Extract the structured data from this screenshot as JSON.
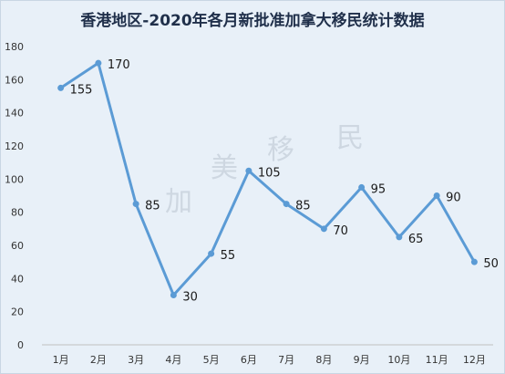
{
  "chart_data": {
    "type": "line",
    "title": "香港地区-2020年各月新批准加拿大移民统计数据",
    "categories": [
      "1月",
      "2月",
      "3月",
      "4月",
      "5月",
      "6月",
      "7月",
      "8月",
      "9月",
      "10月",
      "11月",
      "12月"
    ],
    "series": [
      {
        "values": [
          155,
          170,
          85,
          30,
          55,
          105,
          85,
          70,
          95,
          65,
          90,
          50
        ]
      }
    ],
    "ylim": [
      0,
      180
    ],
    "yticks": [
      0,
      20,
      40,
      60,
      80,
      100,
      120,
      140,
      160,
      180
    ],
    "grid": false,
    "legend": "none",
    "xlabel": "",
    "ylabel": "",
    "line_color": "#5b9bd5",
    "background_color": "#e8f0f8"
  },
  "watermark": [
    "加",
    "美",
    "移",
    "民"
  ]
}
